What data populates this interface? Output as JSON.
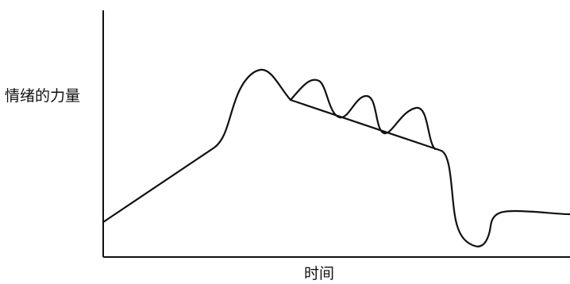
{
  "diagram": {
    "ylabel": "情绪的力量",
    "xlabel": "时间",
    "colors": {
      "line": "#111111",
      "background": "#ffffff"
    }
  }
}
